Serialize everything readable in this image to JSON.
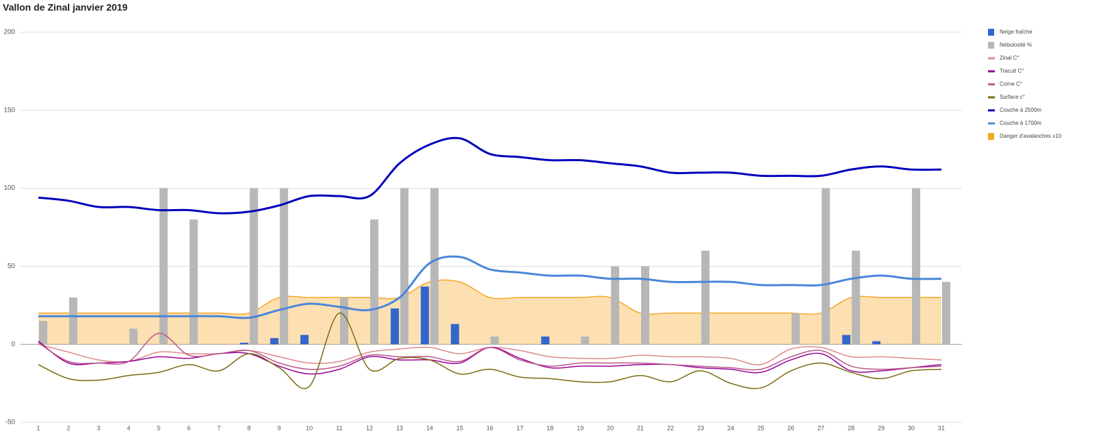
{
  "chart_data": {
    "type": "combo",
    "title": "Vallon de Zinal janvier 2019",
    "categories": [
      "1",
      "2",
      "3",
      "4",
      "5",
      "6",
      "7",
      "8",
      "9",
      "10",
      "11",
      "12",
      "13",
      "14",
      "15",
      "16",
      "17",
      "18",
      "19",
      "20",
      "21",
      "22",
      "23",
      "24",
      "25",
      "26",
      "27",
      "28",
      "29",
      "30",
      "31"
    ],
    "ylim": [
      -50,
      200
    ],
    "yticks": [
      -50,
      0,
      50,
      100,
      150,
      200
    ],
    "grid": true,
    "legend": "right",
    "series": [
      {
        "name": "Neige fraîche",
        "type": "bar",
        "color": "#3366cc",
        "values": [
          0,
          0,
          0,
          0,
          0,
          0,
          0,
          1,
          4,
          6,
          0,
          0,
          23,
          37,
          13,
          0,
          0,
          5,
          0,
          0,
          0,
          0,
          0,
          0,
          0,
          0,
          0,
          6,
          2,
          0,
          0
        ]
      },
      {
        "name": "Nébulosité %",
        "type": "bar",
        "color": "#b7b7b7",
        "values": [
          15,
          30,
          0,
          10,
          100,
          80,
          0,
          100,
          100,
          0,
          30,
          80,
          100,
          100,
          0,
          5,
          0,
          0,
          5,
          50,
          50,
          0,
          60,
          0,
          0,
          20,
          100,
          60,
          0,
          100,
          40
        ]
      },
      {
        "name": "Zinal C°",
        "type": "line",
        "color": "#dd8888",
        "values": [
          0,
          -5,
          -10,
          -11,
          -5,
          -6,
          -6,
          -4,
          -8,
          -12,
          -11,
          -5,
          -3,
          -2,
          -6,
          -2,
          -4,
          -8,
          -9,
          -9,
          -7,
          -8,
          -8,
          -9,
          -13,
          -3,
          -2,
          -8,
          -8,
          -9,
          -10
        ]
      },
      {
        "name": "Tracuit C°",
        "type": "line",
        "color": "#990099",
        "values": [
          2,
          -12,
          -12,
          -11,
          -8,
          -9,
          -6,
          -6,
          -14,
          -19,
          -16,
          -8,
          -10,
          -10,
          -12,
          -2,
          -9,
          -15,
          -14,
          -14,
          -13,
          -13,
          -15,
          -16,
          -18,
          -10,
          -6,
          -17,
          -17,
          -15,
          -13
        ]
      },
      {
        "name": "Corne C°",
        "type": "line",
        "color": "#b8558a",
        "values": [
          1,
          -11,
          -12,
          -11,
          7,
          -7,
          -6,
          -4,
          -12,
          -16,
          -14,
          -7,
          -8,
          -8,
          -11,
          -2,
          -10,
          -14,
          -12,
          -12,
          -12,
          -13,
          -14,
          -15,
          -16,
          -8,
          -4,
          -14,
          -16,
          -15,
          -14
        ]
      },
      {
        "name": "Surface c°",
        "type": "line",
        "color": "#7a6a10",
        "values": [
          -13,
          -22,
          -23,
          -20,
          -18,
          -13,
          -17,
          -6,
          -15,
          -27,
          20,
          -16,
          -9,
          -10,
          -19,
          -16,
          -21,
          -22,
          -24,
          -24,
          -20,
          -24,
          -17,
          -25,
          -28,
          -17,
          -12,
          -18,
          -22,
          -17,
          -16
        ]
      },
      {
        "name": "Couche à 2500m",
        "type": "line",
        "color": "#0000bb",
        "width": 3,
        "values": [
          94,
          92,
          88,
          88,
          86,
          86,
          84,
          85,
          89,
          95,
          95,
          95,
          116,
          128,
          132,
          122,
          120,
          118,
          118,
          116,
          114,
          110,
          110,
          110,
          108,
          108,
          108,
          112,
          114,
          112,
          112
        ]
      },
      {
        "name": "Couche à 1700m",
        "type": "line",
        "color": "#4a86d8",
        "width": 3,
        "values": [
          18,
          18,
          18,
          18,
          18,
          18,
          18,
          17,
          22,
          26,
          24,
          22,
          30,
          52,
          56,
          48,
          46,
          44,
          44,
          42,
          42,
          40,
          40,
          40,
          38,
          38,
          38,
          42,
          44,
          42,
          42
        ]
      },
      {
        "name": "Danger d'avalanches x10",
        "type": "area",
        "color": "#f5a623",
        "values": [
          20,
          20,
          20,
          20,
          20,
          20,
          20,
          20,
          30,
          30,
          30,
          30,
          30,
          40,
          40,
          30,
          30,
          30,
          30,
          30,
          20,
          20,
          20,
          20,
          20,
          20,
          20,
          30,
          30,
          30,
          30
        ]
      }
    ]
  }
}
